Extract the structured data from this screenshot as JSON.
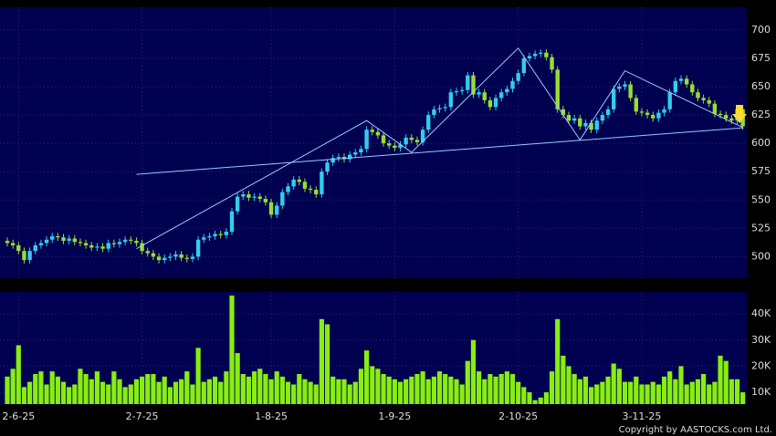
{
  "chart_data": {
    "type": "candlestick",
    "categories": [
      null,
      null,
      "2-6-25",
      null,
      null,
      null,
      null,
      null,
      null,
      null,
      null,
      null,
      null,
      null,
      null,
      null,
      null,
      null,
      null,
      null,
      null,
      null,
      null,
      null,
      "2-7-25",
      null,
      null,
      null,
      null,
      null,
      null,
      null,
      null,
      null,
      null,
      null,
      null,
      null,
      null,
      null,
      null,
      null,
      null,
      null,
      null,
      null,
      null,
      "1-8-25",
      null,
      null,
      null,
      null,
      null,
      null,
      null,
      null,
      null,
      null,
      null,
      null,
      null,
      null,
      null,
      null,
      null,
      null,
      null,
      null,
      null,
      "1-9-25",
      null,
      null,
      null,
      null,
      null,
      null,
      null,
      null,
      null,
      null,
      null,
      null,
      null,
      null,
      null,
      null,
      null,
      null,
      null,
      null,
      null,
      "2-10-25",
      null,
      null,
      null,
      null,
      null,
      null,
      null,
      null,
      null,
      null,
      null,
      null,
      null,
      null,
      null,
      null,
      null,
      null,
      null,
      null,
      null,
      "3-11-25",
      null,
      null,
      null,
      null,
      null,
      null,
      null,
      null,
      null,
      null,
      null,
      null,
      null,
      null,
      null,
      null,
      null,
      null
    ],
    "open": [
      514,
      512,
      510,
      505,
      497,
      505,
      510,
      512,
      515,
      518,
      517,
      514,
      516,
      513,
      512,
      510,
      508,
      509,
      507,
      512,
      511,
      513,
      515,
      514,
      512,
      505,
      503,
      500,
      497,
      499,
      500,
      502,
      499,
      498,
      500,
      515,
      517,
      518,
      520,
      519,
      522,
      540,
      553,
      555,
      552,
      553,
      551,
      548,
      537,
      545,
      557,
      562,
      568,
      566,
      560,
      559,
      555,
      575,
      583,
      587,
      588,
      586,
      590,
      592,
      595,
      612,
      610,
      607,
      600,
      598,
      596,
      599,
      605,
      603,
      601,
      612,
      625,
      630,
      631,
      632,
      645,
      646,
      647,
      660,
      643,
      645,
      638,
      632,
      640,
      645,
      648,
      655,
      662,
      675,
      677,
      679,
      680,
      676,
      665,
      630,
      625,
      620,
      622,
      615,
      618,
      612,
      620,
      625,
      630,
      648,
      650,
      652,
      640,
      628,
      627,
      625,
      622,
      627,
      630,
      645,
      655,
      657,
      652,
      645,
      640,
      638,
      635,
      626,
      625,
      622,
      620,
      630
    ],
    "high": [
      517,
      515,
      513,
      508,
      508,
      513,
      515,
      518,
      521,
      521,
      520,
      519,
      519,
      516,
      515,
      513,
      512,
      512,
      515,
      515,
      516,
      518,
      518,
      517,
      515,
      508,
      506,
      503,
      502,
      503,
      505,
      505,
      502,
      503,
      518,
      520,
      521,
      523,
      523,
      525,
      543,
      556,
      558,
      558,
      556,
      556,
      554,
      551,
      548,
      560,
      565,
      571,
      571,
      569,
      563,
      562,
      578,
      586,
      590,
      591,
      591,
      593,
      595,
      598,
      615,
      615,
      613,
      610,
      603,
      601,
      602,
      608,
      608,
      606,
      615,
      628,
      633,
      634,
      635,
      648,
      649,
      650,
      663,
      663,
      648,
      648,
      641,
      643,
      648,
      651,
      658,
      665,
      678,
      680,
      682,
      683,
      683,
      679,
      668,
      633,
      628,
      625,
      625,
      621,
      621,
      623,
      628,
      633,
      651,
      653,
      655,
      655,
      643,
      631,
      630,
      628,
      630,
      633,
      648,
      658,
      660,
      660,
      655,
      648,
      643,
      641,
      638,
      629,
      628,
      625,
      633,
      633
    ],
    "low": [
      509,
      507,
      502,
      494,
      494,
      502,
      507,
      509,
      512,
      514,
      511,
      511,
      510,
      509,
      507,
      505,
      505,
      504,
      504,
      508,
      508,
      510,
      511,
      509,
      502,
      500,
      497,
      494,
      494,
      496,
      497,
      496,
      495,
      495,
      497,
      512,
      514,
      515,
      516,
      516,
      519,
      537,
      550,
      549,
      549,
      548,
      545,
      534,
      534,
      542,
      554,
      559,
      563,
      557,
      556,
      552,
      552,
      572,
      580,
      584,
      583,
      583,
      587,
      589,
      592,
      607,
      604,
      597,
      595,
      593,
      593,
      596,
      600,
      598,
      598,
      609,
      622,
      627,
      628,
      629,
      642,
      643,
      644,
      640,
      640,
      635,
      629,
      629,
      637,
      642,
      645,
      652,
      659,
      672,
      674,
      676,
      673,
      662,
      627,
      622,
      617,
      617,
      612,
      612,
      609,
      609,
      617,
      622,
      627,
      645,
      647,
      637,
      625,
      624,
      622,
      619,
      619,
      624,
      627,
      642,
      652,
      649,
      642,
      637,
      635,
      632,
      623,
      622,
      619,
      617,
      617,
      612
    ],
    "close": [
      512,
      510,
      505,
      497,
      505,
      510,
      512,
      515,
      518,
      517,
      514,
      516,
      513,
      512,
      510,
      508,
      509,
      507,
      512,
      511,
      513,
      515,
      514,
      512,
      505,
      503,
      500,
      497,
      499,
      500,
      502,
      499,
      498,
      500,
      515,
      517,
      518,
      520,
      519,
      522,
      540,
      553,
      555,
      552,
      553,
      551,
      548,
      537,
      545,
      557,
      562,
      568,
      566,
      560,
      559,
      555,
      575,
      583,
      587,
      588,
      586,
      590,
      592,
      595,
      612,
      610,
      607,
      600,
      598,
      596,
      599,
      605,
      603,
      601,
      612,
      625,
      630,
      631,
      632,
      645,
      646,
      647,
      660,
      643,
      645,
      638,
      632,
      640,
      645,
      648,
      655,
      662,
      675,
      677,
      679,
      680,
      676,
      665,
      630,
      625,
      620,
      622,
      615,
      618,
      612,
      620,
      625,
      630,
      648,
      650,
      652,
      640,
      628,
      627,
      625,
      622,
      627,
      630,
      645,
      655,
      657,
      652,
      645,
      640,
      638,
      635,
      626,
      625,
      622,
      620,
      630,
      615
    ],
    "volume": [
      16000,
      19000,
      28000,
      12000,
      14000,
      17000,
      18000,
      13000,
      18000,
      16000,
      14000,
      12000,
      13000,
      19000,
      17000,
      15000,
      18000,
      14000,
      13000,
      18000,
      15000,
      12000,
      13000,
      15000,
      16000,
      17000,
      17000,
      14000,
      16000,
      12000,
      14000,
      15000,
      18000,
      13000,
      27000,
      14000,
      15000,
      16000,
      14000,
      18000,
      47000,
      25000,
      17000,
      16000,
      18000,
      19000,
      17000,
      15000,
      18000,
      16000,
      14000,
      13000,
      17000,
      15000,
      14000,
      13000,
      38000,
      36000,
      16000,
      15000,
      15000,
      13000,
      14000,
      19000,
      26000,
      20000,
      19000,
      17000,
      16000,
      15000,
      14000,
      15000,
      16000,
      17000,
      18000,
      15000,
      16000,
      18000,
      17000,
      16000,
      15000,
      13000,
      22000,
      30000,
      18000,
      15000,
      17000,
      16000,
      17000,
      18000,
      17000,
      14000,
      12000,
      10000,
      7000,
      8000,
      10000,
      18000,
      38000,
      24000,
      20000,
      17000,
      15000,
      16000,
      12000,
      13000,
      14000,
      16000,
      21000,
      19000,
      14000,
      14000,
      16000,
      13000,
      13000,
      14000,
      13000,
      16000,
      18000,
      15000,
      20000,
      13000,
      14000,
      15000,
      17000,
      13000,
      14000,
      24000,
      22000,
      15000,
      15000,
      10000
    ],
    "ylim": [
      481,
      720
    ],
    "yticks": [
      500,
      525,
      550,
      575,
      600,
      625,
      650,
      675,
      700
    ],
    "volume_ylim": [
      5500,
      48400
    ],
    "volume_yticks": [
      {
        "value": 10000,
        "label": "10K"
      },
      {
        "value": 20000,
        "label": "20K"
      },
      {
        "value": 30000,
        "label": "30K"
      },
      {
        "value": 40000,
        "label": "40K"
      }
    ],
    "up_color": "#33ccee",
    "down_color": "#99dd33",
    "volume_color": "#88ee11",
    "trendline_color": "#99ccff",
    "trendlines": [
      {
        "x": [
          23,
          131
        ],
        "y": [
          572.6,
          613.7
        ]
      },
      {
        "x": [
          23,
          64,
          72,
          91,
          102,
          110,
          131
        ],
        "y": [
          507,
          620,
          592,
          684,
          603,
          664,
          614
        ]
      }
    ],
    "grid": true,
    "copyright": "Copyright by AASTOCKS.com Ltd."
  }
}
